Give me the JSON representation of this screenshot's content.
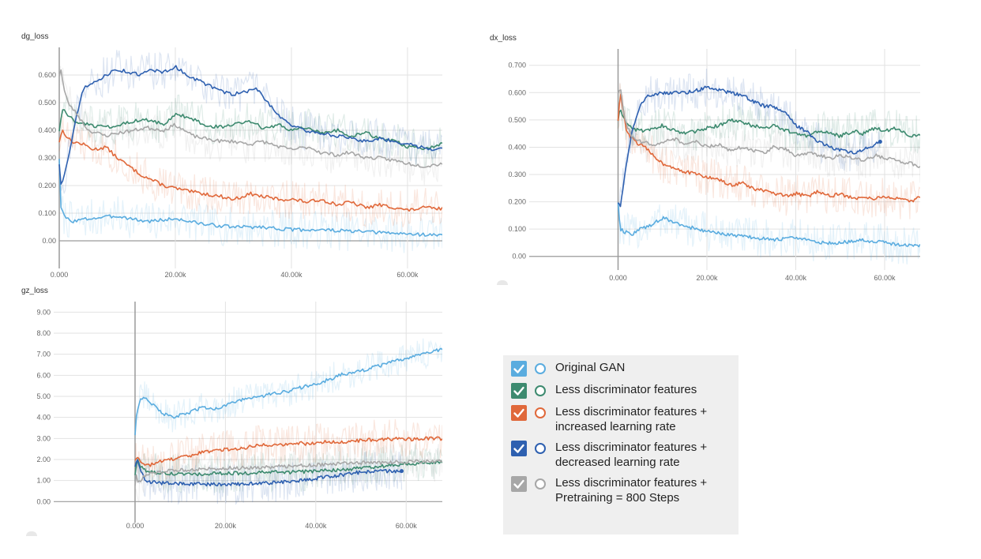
{
  "chart_data": [
    {
      "type": "line",
      "title": "dg_loss",
      "xlim": [
        0,
        66000
      ],
      "ylim": [
        -0.1,
        0.7
      ],
      "x_ticks": [
        0,
        20000,
        40000,
        60000
      ],
      "x_tick_labels": [
        "0.000",
        "20.00k",
        "40.00k",
        "60.00k"
      ],
      "y_ticks": [
        0,
        0.1,
        0.2,
        0.3,
        0.4,
        0.5,
        0.6
      ],
      "y_tick_labels": [
        "0.00",
        "0.100",
        "0.200",
        "0.300",
        "0.400",
        "0.500",
        "0.600"
      ],
      "grid": true,
      "series": [
        {
          "name": "Original GAN",
          "color": "#5aacdf",
          "x": [
            0,
            300,
            800,
            2000,
            5000,
            10000,
            15000,
            20000,
            25000,
            30000,
            35000,
            40000,
            45000,
            50000,
            55000,
            60000,
            66000
          ],
          "values": [
            0.3,
            0.12,
            0.09,
            0.07,
            0.08,
            0.09,
            0.07,
            0.08,
            0.06,
            0.05,
            0.05,
            0.04,
            0.04,
            0.035,
            0.03,
            0.025,
            0.02
          ]
        },
        {
          "name": "Less discriminator features",
          "color": "#3d8a6f",
          "x": [
            0,
            500,
            1500,
            3000,
            5000,
            8000,
            10000,
            12000,
            15000,
            18000,
            20000,
            23000,
            25000,
            28000,
            30000,
            33000,
            35000,
            38000,
            40000,
            43000,
            45000,
            48000,
            50000,
            53000,
            55000,
            58000,
            60000,
            63000,
            66000
          ],
          "values": [
            0.4,
            0.48,
            0.45,
            0.43,
            0.42,
            0.41,
            0.42,
            0.43,
            0.44,
            0.42,
            0.46,
            0.44,
            0.42,
            0.41,
            0.42,
            0.43,
            0.41,
            0.42,
            0.4,
            0.41,
            0.39,
            0.4,
            0.38,
            0.39,
            0.37,
            0.36,
            0.34,
            0.33,
            0.35
          ]
        },
        {
          "name": "Less discriminator features + increased learning rate",
          "color": "#e0683a",
          "x": [
            0,
            500,
            2000,
            4000,
            6000,
            8000,
            10000,
            12000,
            14000,
            16000,
            18000,
            20000,
            22000,
            25000,
            28000,
            30000,
            33000,
            35000,
            38000,
            40000,
            43000,
            45000,
            48000,
            50000,
            53000,
            55000,
            58000,
            60000,
            63000,
            66000
          ],
          "values": [
            0.36,
            0.4,
            0.36,
            0.35,
            0.33,
            0.34,
            0.3,
            0.27,
            0.24,
            0.22,
            0.2,
            0.19,
            0.18,
            0.17,
            0.16,
            0.15,
            0.17,
            0.16,
            0.15,
            0.15,
            0.14,
            0.15,
            0.13,
            0.14,
            0.12,
            0.13,
            0.12,
            0.11,
            0.12,
            0.115
          ]
        },
        {
          "name": "Less discriminator features + decreased learning rate",
          "color": "#2e60b0",
          "x": [
            0,
            300,
            1000,
            2000,
            3000,
            4000,
            6000,
            8000,
            10000,
            12000,
            14000,
            16000,
            18000,
            20000,
            22000,
            24000,
            26000,
            28000,
            30000,
            32000,
            34000,
            36000,
            38000,
            40000,
            42000,
            45000,
            48000,
            50000,
            53000,
            55000,
            58000,
            60000,
            62000,
            65000,
            66000
          ],
          "values": [
            0.28,
            0.2,
            0.25,
            0.35,
            0.45,
            0.55,
            0.57,
            0.6,
            0.62,
            0.61,
            0.6,
            0.62,
            0.61,
            0.63,
            0.6,
            0.58,
            0.56,
            0.54,
            0.53,
            0.54,
            0.55,
            0.5,
            0.45,
            0.42,
            0.4,
            0.39,
            0.38,
            0.37,
            0.36,
            0.37,
            0.36,
            0.35,
            0.34,
            0.33,
            0.34
          ]
        },
        {
          "name": "Less discriminator features + Pretraining = 800 Steps",
          "color": "#a7a7a7",
          "x": [
            0,
            300,
            800,
            1500,
            3000,
            5000,
            8000,
            10000,
            13000,
            15000,
            18000,
            20000,
            23000,
            25000,
            28000,
            30000,
            33000,
            35000,
            38000,
            40000,
            43000,
            45000,
            48000,
            50000,
            53000,
            55000,
            58000,
            60000,
            63000,
            66000
          ],
          "values": [
            0.6,
            0.62,
            0.55,
            0.5,
            0.46,
            0.4,
            0.38,
            0.39,
            0.4,
            0.41,
            0.4,
            0.42,
            0.38,
            0.37,
            0.36,
            0.36,
            0.35,
            0.36,
            0.34,
            0.33,
            0.34,
            0.32,
            0.31,
            0.32,
            0.3,
            0.3,
            0.29,
            0.28,
            0.27,
            0.28
          ]
        }
      ]
    },
    {
      "type": "line",
      "title": "dx_loss",
      "xlim": [
        -20000,
        68000
      ],
      "ylim": [
        -0.05,
        0.76
      ],
      "x_ticks": [
        0,
        20000,
        40000,
        60000
      ],
      "x_tick_labels": [
        "0.000",
        "20.00k",
        "40.00k",
        "60.00k"
      ],
      "y_ticks": [
        0,
        0.1,
        0.2,
        0.3,
        0.4,
        0.5,
        0.6,
        0.7
      ],
      "y_tick_labels": [
        "0.00",
        "0.100",
        "0.200",
        "0.300",
        "0.400",
        "0.500",
        "0.600",
        "0.700"
      ],
      "grid": true,
      "series": [
        {
          "name": "Original GAN",
          "color": "#5aacdf",
          "x": [
            0,
            500,
            1500,
            3000,
            5000,
            8000,
            10000,
            12000,
            15000,
            18000,
            20000,
            25000,
            30000,
            35000,
            40000,
            45000,
            50000,
            55000,
            60000,
            65000,
            68000
          ],
          "values": [
            0.2,
            0.1,
            0.09,
            0.08,
            0.1,
            0.12,
            0.14,
            0.13,
            0.11,
            0.1,
            0.09,
            0.08,
            0.07,
            0.06,
            0.07,
            0.05,
            0.05,
            0.06,
            0.05,
            0.04,
            0.04
          ]
        },
        {
          "name": "Less discriminator features",
          "color": "#3d8a6f",
          "x": [
            0,
            500,
            1500,
            3000,
            5000,
            8000,
            10000,
            13000,
            15000,
            18000,
            20000,
            23000,
            25000,
            28000,
            30000,
            33000,
            35000,
            38000,
            40000,
            43000,
            45000,
            48000,
            50000,
            53000,
            55000,
            58000,
            60000,
            63000,
            66000,
            68000
          ],
          "values": [
            0.5,
            0.54,
            0.5,
            0.47,
            0.46,
            0.47,
            0.48,
            0.46,
            0.45,
            0.46,
            0.47,
            0.48,
            0.5,
            0.49,
            0.48,
            0.47,
            0.48,
            0.46,
            0.45,
            0.44,
            0.46,
            0.45,
            0.44,
            0.46,
            0.45,
            0.47,
            0.46,
            0.47,
            0.44,
            0.45
          ]
        },
        {
          "name": "Less discriminator features + increased learning rate",
          "color": "#e0683a",
          "x": [
            0,
            500,
            2000,
            4000,
            6000,
            8000,
            10000,
            12000,
            15000,
            18000,
            20000,
            23000,
            25000,
            28000,
            30000,
            33000,
            35000,
            38000,
            40000,
            43000,
            45000,
            48000,
            50000,
            53000,
            55000,
            58000,
            60000,
            63000,
            66000,
            68000
          ],
          "values": [
            0.5,
            0.6,
            0.45,
            0.42,
            0.4,
            0.37,
            0.34,
            0.33,
            0.31,
            0.3,
            0.29,
            0.28,
            0.26,
            0.27,
            0.25,
            0.24,
            0.23,
            0.22,
            0.23,
            0.22,
            0.24,
            0.22,
            0.23,
            0.21,
            0.22,
            0.21,
            0.22,
            0.21,
            0.2,
            0.22
          ]
        },
        {
          "name": "Less discriminator features + decreased learning rate",
          "color": "#2e60b0",
          "x": [
            0,
            500,
            1500,
            3000,
            5000,
            7000,
            10000,
            13000,
            15000,
            18000,
            20000,
            23000,
            25000,
            28000,
            30000,
            33000,
            35000,
            38000,
            40000,
            43000,
            45000,
            48000,
            50000,
            53000,
            55000,
            57000,
            59000
          ],
          "values": [
            0.2,
            0.18,
            0.3,
            0.45,
            0.56,
            0.59,
            0.6,
            0.6,
            0.6,
            0.61,
            0.62,
            0.61,
            0.6,
            0.59,
            0.57,
            0.55,
            0.55,
            0.52,
            0.48,
            0.45,
            0.42,
            0.4,
            0.39,
            0.38,
            0.39,
            0.4,
            0.42
          ]
        },
        {
          "name": "Less discriminator features + Pretraining = 800 Steps",
          "color": "#a7a7a7",
          "x": [
            0,
            500,
            1500,
            3000,
            5000,
            8000,
            10000,
            13000,
            15000,
            18000,
            20000,
            23000,
            25000,
            28000,
            30000,
            33000,
            35000,
            38000,
            40000,
            43000,
            45000,
            48000,
            50000,
            53000,
            55000,
            58000,
            60000,
            63000,
            66000,
            68000
          ],
          "values": [
            0.6,
            0.62,
            0.5,
            0.44,
            0.42,
            0.41,
            0.42,
            0.43,
            0.41,
            0.42,
            0.4,
            0.41,
            0.39,
            0.4,
            0.39,
            0.38,
            0.4,
            0.39,
            0.37,
            0.38,
            0.37,
            0.36,
            0.37,
            0.36,
            0.35,
            0.37,
            0.36,
            0.35,
            0.34,
            0.33
          ]
        }
      ]
    },
    {
      "type": "line",
      "title": "gz_loss",
      "xlim": [
        -18000,
        68000
      ],
      "ylim": [
        -1.0,
        9.5
      ],
      "x_ticks": [
        0,
        20000,
        40000,
        60000
      ],
      "x_tick_labels": [
        "0.000",
        "20.00k",
        "40.00k",
        "60.00k"
      ],
      "y_ticks": [
        0,
        1,
        2,
        3,
        4,
        5,
        6,
        7,
        8,
        9
      ],
      "y_tick_labels": [
        "0.00",
        "1.00",
        "2.00",
        "3.00",
        "4.00",
        "5.00",
        "6.00",
        "7.00",
        "8.00",
        "9.00"
      ],
      "grid": true,
      "series": [
        {
          "name": "Original GAN",
          "color": "#5aacdf",
          "x": [
            0,
            300,
            1000,
            2000,
            4000,
            6000,
            8000,
            10000,
            13000,
            15000,
            18000,
            20000,
            23000,
            25000,
            28000,
            30000,
            33000,
            35000,
            38000,
            40000,
            43000,
            45000,
            48000,
            50000,
            53000,
            55000,
            58000,
            60000,
            63000,
            66000,
            68000
          ],
          "values": [
            3.2,
            4.1,
            4.8,
            5.0,
            4.6,
            4.2,
            4.0,
            4.1,
            4.3,
            4.5,
            4.4,
            4.6,
            4.8,
            4.9,
            5.0,
            5.1,
            5.2,
            5.3,
            5.5,
            5.6,
            5.8,
            6.0,
            6.1,
            6.2,
            6.4,
            6.5,
            6.7,
            6.8,
            7.0,
            7.1,
            7.3
          ]
        },
        {
          "name": "Less discriminator features",
          "color": "#3d8a6f",
          "x": [
            0,
            500,
            1500,
            3000,
            5000,
            10000,
            15000,
            20000,
            25000,
            30000,
            35000,
            40000,
            45000,
            50000,
            55000,
            60000,
            65000,
            68000
          ],
          "values": [
            1.3,
            2.0,
            1.6,
            1.4,
            1.35,
            1.3,
            1.3,
            1.35,
            1.35,
            1.4,
            1.4,
            1.45,
            1.5,
            1.6,
            1.7,
            1.8,
            1.85,
            1.9
          ]
        },
        {
          "name": "Less discriminator features + increased learning rate",
          "color": "#e0683a",
          "x": [
            0,
            500,
            1500,
            3000,
            5000,
            8000,
            10000,
            13000,
            15000,
            18000,
            20000,
            23000,
            25000,
            28000,
            30000,
            33000,
            35000,
            38000,
            40000,
            43000,
            45000,
            48000,
            50000,
            53000,
            55000,
            58000,
            60000,
            63000,
            66000,
            68000
          ],
          "values": [
            2.0,
            2.2,
            1.8,
            1.7,
            1.9,
            2.0,
            2.1,
            2.2,
            2.4,
            2.4,
            2.5,
            2.5,
            2.6,
            2.7,
            2.7,
            2.7,
            2.8,
            2.75,
            2.8,
            2.85,
            2.8,
            2.9,
            2.9,
            2.95,
            2.95,
            3.0,
            2.95,
            3.0,
            3.0,
            3.0
          ]
        },
        {
          "name": "Less discriminator features + decreased learning rate",
          "color": "#2e60b0",
          "x": [
            0,
            500,
            1000,
            2000,
            3000,
            5000,
            8000,
            10000,
            15000,
            20000,
            25000,
            30000,
            35000,
            40000,
            45000,
            50000,
            55000,
            59000
          ],
          "values": [
            1.7,
            2.0,
            1.6,
            1.1,
            0.95,
            0.9,
            0.85,
            0.85,
            0.82,
            0.82,
            0.85,
            0.9,
            0.95,
            1.1,
            1.25,
            1.4,
            1.45,
            1.45
          ]
        },
        {
          "name": "Less discriminator features + Pretraining = 800 Steps",
          "color": "#a7a7a7",
          "x": [
            0,
            300,
            800,
            1500,
            3000,
            5000,
            10000,
            15000,
            20000,
            25000,
            30000,
            35000,
            40000,
            45000,
            50000,
            55000,
            60000,
            65000,
            68000
          ],
          "values": [
            0.8,
            1.2,
            0.9,
            1.1,
            1.3,
            1.4,
            1.5,
            1.55,
            1.6,
            1.6,
            1.65,
            1.7,
            1.75,
            1.8,
            1.85,
            1.85,
            1.9,
            1.9,
            1.9
          ]
        }
      ]
    }
  ],
  "legend": {
    "items": [
      {
        "label": "Original GAN",
        "color": "#5aacdf"
      },
      {
        "label": "Less discriminator features",
        "color": "#3d8a6f"
      },
      {
        "label": "Less discriminator features +\nincreased learning rate",
        "color": "#e0683a"
      },
      {
        "label": "Less discriminator features +\ndecreased learning rate",
        "color": "#2e60b0"
      },
      {
        "label": "Less discriminator features +\nPretraining = 800 Steps",
        "color": "#a7a7a7"
      }
    ]
  }
}
